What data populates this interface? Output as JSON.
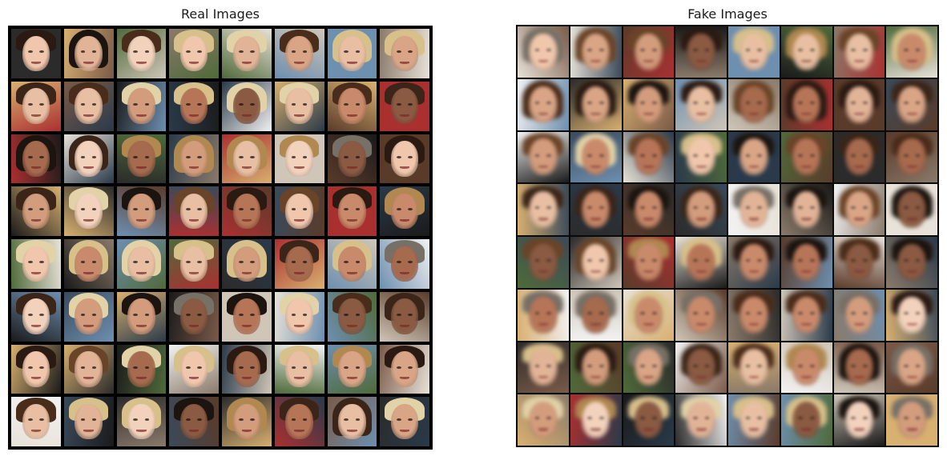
{
  "panels": {
    "real": {
      "title": "Real Images",
      "rows": 8,
      "cols": 8
    },
    "fake": {
      "title": "Fake Images",
      "rows": 8,
      "cols": 8
    }
  },
  "palette": {
    "backgrounds": [
      "#2b2b2b",
      "#5a3b2a",
      "#e8e2d8",
      "#3a4a5a",
      "#6d8fb0",
      "#1a1a1a",
      "#cfc6b8",
      "#7a5a48",
      "#d8b070",
      "#4f6a3a",
      "#aa3030",
      "#f2f2f2",
      "#2a3a4a",
      "#8a7a6a"
    ],
    "skins": [
      "#e2b497",
      "#d39c7d",
      "#c98a6b",
      "#b77558",
      "#f0c7ac",
      "#a66a4e",
      "#e8bfa2",
      "#d9a586",
      "#8a5a42",
      "#f3d2bd"
    ],
    "hairs": [
      "#1b140f",
      "#3a2518",
      "#6a4428",
      "#b08850",
      "#d8c08a",
      "#2a1a12",
      "#777066",
      "#e2d2a8",
      "#4a2c1a"
    ]
  }
}
